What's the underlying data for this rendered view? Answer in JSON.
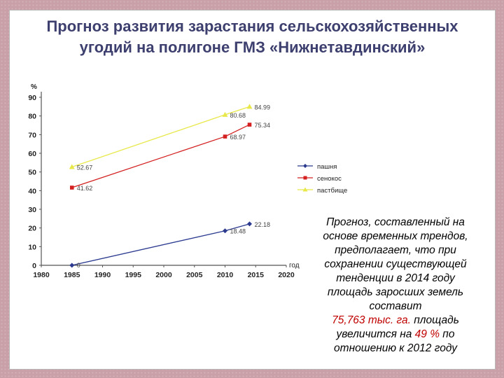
{
  "title_line1": "Прогноз развития зарастания сельскохозяйственных",
  "title_line2": "угодий на полигоне ГМЗ «Нижнетавдинский»",
  "note": {
    "line1": "Прогноз, составленный на",
    "line2": "основе временных трендов,",
    "line3": "предполагает, что при",
    "line4": "сохранении существующей",
    "line5": "тенденции в 2014 году",
    "line6": "площадь заросших земель",
    "line7": "составит",
    "value": "75,763 тыс. га.",
    "line8_tail": " площадь",
    "line9_head": "увеличится на ",
    "percent": "49 %",
    "line9_tail": " по",
    "line10": "отношению к 2012 году"
  },
  "colors": {
    "title": "#3d3f6e",
    "highlight": "#c00000"
  },
  "chart_data": {
    "type": "line",
    "ylabel": "%",
    "xlabel": "год",
    "xlim": [
      1980,
      2020
    ],
    "ylim": [
      0,
      90
    ],
    "x_ticks": [
      1980,
      1985,
      1990,
      1995,
      2000,
      2005,
      2010,
      2015,
      2020
    ],
    "y_ticks": [
      0,
      10,
      20,
      30,
      40,
      50,
      60,
      70,
      80,
      90
    ],
    "grid": false,
    "legend_position": "right",
    "series": [
      {
        "name": "пашня",
        "color": "#2b3a8f",
        "points": [
          {
            "x": 1985,
            "y": 0,
            "label": "0"
          },
          {
            "x": 2010,
            "y": 18.48,
            "label": "18.48"
          },
          {
            "x": 2014,
            "y": 22.18,
            "label": "22.18"
          }
        ]
      },
      {
        "name": "сенокос",
        "color": "#d42020",
        "points": [
          {
            "x": 1985,
            "y": 41.62,
            "label": "41.62"
          },
          {
            "x": 2010,
            "y": 68.97,
            "label": "68.97"
          },
          {
            "x": 2014,
            "y": 75.34,
            "label": "75.34"
          }
        ]
      },
      {
        "name": "пастбище",
        "color": "#e8e84a",
        "points": [
          {
            "x": 1985,
            "y": 52.67,
            "label": "52.67"
          },
          {
            "x": 2010,
            "y": 80.68,
            "label": "80.68"
          },
          {
            "x": 2014,
            "y": 84.99,
            "label": "84.99"
          }
        ]
      }
    ]
  }
}
